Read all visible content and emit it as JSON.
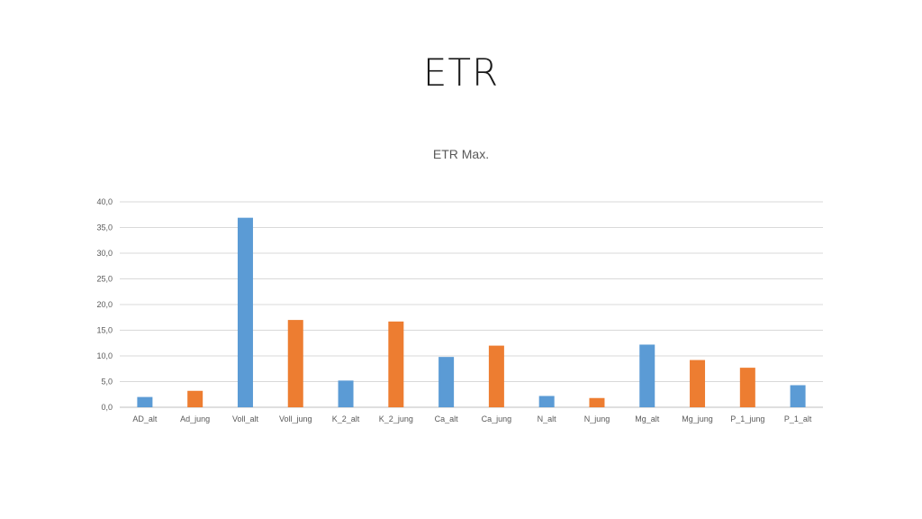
{
  "slide": {
    "title": "ETR"
  },
  "chart_data": {
    "type": "bar",
    "title": "ETR Max.",
    "xlabel": "",
    "ylabel": "",
    "ylim": [
      0,
      40
    ],
    "yticks": [
      "0,0",
      "5,0",
      "10,0",
      "15,0",
      "20,0",
      "25,0",
      "30,0",
      "35,0",
      "40,0"
    ],
    "ytick_values": [
      0,
      5,
      10,
      15,
      20,
      25,
      30,
      35,
      40
    ],
    "grid": true,
    "legend": "none",
    "categories": [
      "AD_alt",
      "Ad_jung",
      "Voll_alt",
      "Voll_jung",
      "K_2_alt",
      "K_2_jung",
      "Ca_alt",
      "Ca_jung",
      "N_alt",
      "N_jung",
      "Mg_alt",
      "Mg_jung",
      "P_1_jung",
      "P_1_alt"
    ],
    "values": [
      2.0,
      3.2,
      36.9,
      17.0,
      5.2,
      16.7,
      9.8,
      12.0,
      2.2,
      1.8,
      12.2,
      9.2,
      7.7,
      4.3
    ],
    "bar_colors": [
      "#5b9bd5",
      "#ed7d31",
      "#5b9bd5",
      "#ed7d31",
      "#5b9bd5",
      "#ed7d31",
      "#5b9bd5",
      "#ed7d31",
      "#5b9bd5",
      "#ed7d31",
      "#5b9bd5",
      "#ed7d31",
      "#ed7d31",
      "#5b9bd5"
    ]
  }
}
